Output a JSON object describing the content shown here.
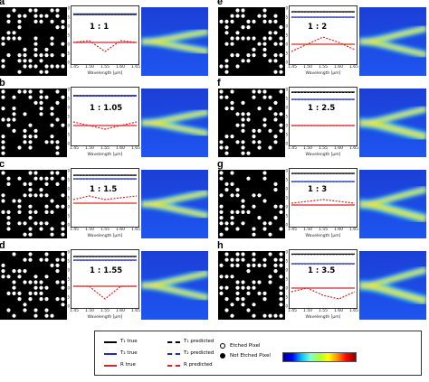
{
  "panels": [
    {
      "letter": "a",
      "ratio": "1 : 1",
      "ylabel": "Transmission [dB]"
    },
    {
      "letter": "b",
      "ratio": "1 : 1.05",
      "ylabel": "Transmission [dB]"
    },
    {
      "letter": "c",
      "ratio": "1 : 1.5",
      "ylabel": "Transmission [dB]"
    },
    {
      "letter": "d",
      "ratio": "1 : 1.55",
      "ylabel": "Transmission [dB]"
    },
    {
      "letter": "e",
      "ratio": "1 : 2",
      "ylabel": "Transmission [dB]"
    },
    {
      "letter": "f",
      "ratio": "1 : 2.5",
      "ylabel": "Transmission [dB]"
    },
    {
      "letter": "g",
      "ratio": "1 : 3",
      "ylabel": "Transmission [dB]"
    },
    {
      "letter": "h",
      "ratio": "1 : 3.5",
      "ylabel": "Transmission [dB]"
    }
  ],
  "axes": {
    "xticks": [
      "1.45",
      "1.50",
      "1.55",
      "1.60",
      "1.65"
    ],
    "yticks": [
      "0",
      "-5",
      "-10",
      "-15",
      "-20",
      "-25",
      "-30"
    ],
    "xlabel": "Wavelength [μm]"
  },
  "legend": {
    "t1_true": "T₁ true",
    "t1_pred": "T₁ predicted",
    "t2_true": "T₂ true",
    "t2_pred": "T₂ predicted",
    "r_true": "R true",
    "r_pred": "R predicted",
    "etched": "Etched Pixel",
    "not_etched": "Not Etched Pixel"
  },
  "colors": {
    "t1": "#000000",
    "t2": "#1f2db8",
    "r": "#d62728"
  },
  "chart_data": {
    "type": "line",
    "xlabel": "Wavelength [μm]",
    "ylabel": "Transmission [dB]",
    "xlim": [
      1.45,
      1.65
    ],
    "ylim": [
      -30,
      0
    ],
    "x": [
      1.45,
      1.5,
      1.55,
      1.6,
      1.65
    ],
    "panels": [
      {
        "letter": "a",
        "series": [
          {
            "name": "T₁ true",
            "values": [
              -3.5,
              -3.5,
              -3.5,
              -3.5,
              -3.5
            ]
          },
          {
            "name": "T₁ predicted",
            "values": [
              -3.6,
              -3.6,
              -3.6,
              -3.6,
              -3.6
            ]
          },
          {
            "name": "T₂ true",
            "values": [
              -3.2,
              -3.2,
              -3.2,
              -3.2,
              -3.2
            ]
          },
          {
            "name": "T₂ predicted",
            "values": [
              -3.3,
              -3.3,
              -3.3,
              -3.3,
              -3.3
            ]
          },
          {
            "name": "R true",
            "values": [
              -19,
              -19,
              -19,
              -19,
              -19
            ]
          },
          {
            "name": "R predicted",
            "values": [
              -19,
              -18,
              -24,
              -18,
              -19
            ]
          }
        ]
      },
      {
        "letter": "b",
        "series": [
          {
            "name": "T₁ true",
            "values": [
              -3.4,
              -3.4,
              -3.4,
              -3.4,
              -3.4
            ]
          },
          {
            "name": "T₁ predicted",
            "values": [
              -3.5,
              -3.5,
              -3.5,
              -3.5,
              -3.5
            ]
          },
          {
            "name": "T₂ true",
            "values": [
              -3.6,
              -3.6,
              -3.6,
              -3.6,
              -3.6
            ]
          },
          {
            "name": "T₂ predicted",
            "values": [
              -3.7,
              -3.7,
              -3.7,
              -3.7,
              -3.7
            ]
          },
          {
            "name": "R true",
            "values": [
              -20,
              -20,
              -20,
              -20,
              -20
            ]
          },
          {
            "name": "R predicted",
            "values": [
              -18,
              -20,
              -22,
              -20,
              -18
            ]
          }
        ]
      },
      {
        "letter": "c",
        "series": [
          {
            "name": "T₁ true",
            "values": [
              -2.5,
              -2.5,
              -2.5,
              -2.5,
              -2.5
            ]
          },
          {
            "name": "T₁ predicted",
            "values": [
              -2.6,
              -2.6,
              -2.6,
              -2.6,
              -2.6
            ]
          },
          {
            "name": "T₂ true",
            "values": [
              -4.5,
              -4.5,
              -4.5,
              -4.5,
              -4.5
            ]
          },
          {
            "name": "T₂ predicted",
            "values": [
              -4.6,
              -4.6,
              -4.6,
              -4.6,
              -4.6
            ]
          },
          {
            "name": "R true",
            "values": [
              -18,
              -18,
              -18,
              -18,
              -18
            ]
          },
          {
            "name": "R predicted",
            "values": [
              -16,
              -14,
              -16,
              -15,
              -14
            ]
          }
        ]
      },
      {
        "letter": "d",
        "series": [
          {
            "name": "T₁ true",
            "values": [
              -2.5,
              -2.5,
              -2.5,
              -2.5,
              -2.5
            ]
          },
          {
            "name": "T₁ predicted",
            "values": [
              -2.6,
              -2.6,
              -2.6,
              -2.6,
              -2.6
            ]
          },
          {
            "name": "T₂ true",
            "values": [
              -4.5,
              -4.5,
              -4.5,
              -4.5,
              -4.5
            ]
          },
          {
            "name": "T₂ predicted",
            "values": [
              -4.6,
              -4.6,
              -4.6,
              -4.6,
              -4.6
            ]
          },
          {
            "name": "R true",
            "values": [
              -19,
              -19,
              -19,
              -19,
              -19
            ]
          },
          {
            "name": "R predicted",
            "values": [
              -19,
              -19,
              -26,
              -19,
              -19
            ]
          }
        ]
      },
      {
        "letter": "e",
        "series": [
          {
            "name": "T₁ true",
            "values": [
              -2,
              -2,
              -2,
              -2,
              -2
            ]
          },
          {
            "name": "T₁ predicted",
            "values": [
              -2.1,
              -2.1,
              -2.1,
              -2.1,
              -2.1
            ]
          },
          {
            "name": "T₂ true",
            "values": [
              -5,
              -5,
              -5,
              -5,
              -5
            ]
          },
          {
            "name": "T₂ predicted",
            "values": [
              -5.1,
              -5.1,
              -5.1,
              -5.1,
              -5.1
            ]
          },
          {
            "name": "R true",
            "values": [
              -20,
              -20,
              -20,
              -20,
              -20
            ]
          },
          {
            "name": "R predicted",
            "values": [
              -24,
              -20,
              -16,
              -19,
              -23
            ]
          }
        ]
      },
      {
        "letter": "f",
        "series": [
          {
            "name": "T₁ true",
            "values": [
              -1.5,
              -1.5,
              -1.5,
              -1.5,
              -1.5
            ]
          },
          {
            "name": "T₁ predicted",
            "values": [
              -1.7,
              -1.7,
              -1.7,
              -1.7,
              -1.7
            ]
          },
          {
            "name": "T₂ true",
            "values": [
              -5.5,
              -5.5,
              -5.5,
              -5.5,
              -5.5
            ]
          },
          {
            "name": "T₂ predicted",
            "values": [
              -5.6,
              -5.6,
              -5.6,
              -5.6,
              -5.6
            ]
          },
          {
            "name": "R true",
            "values": [
              -20,
              -20,
              -20,
              -20,
              -20
            ]
          },
          {
            "name": "R predicted",
            "values": [
              -20,
              -20,
              -20,
              -20,
              -20
            ]
          }
        ]
      },
      {
        "letter": "g",
        "series": [
          {
            "name": "T₁ true",
            "values": [
              -1.5,
              -1.5,
              -1.5,
              -1.5,
              -1.5
            ]
          },
          {
            "name": "T₁ predicted",
            "values": [
              -1.6,
              -1.6,
              -1.6,
              -1.6,
              -1.6
            ]
          },
          {
            "name": "T₂ true",
            "values": [
              -6,
              -6,
              -6,
              -6,
              -6
            ]
          },
          {
            "name": "T₂ predicted",
            "values": [
              -6.1,
              -6.1,
              -6.1,
              -6.1,
              -6.1
            ]
          },
          {
            "name": "R true",
            "values": [
              -19,
              -19,
              -19,
              -19,
              -19
            ]
          },
          {
            "name": "R predicted",
            "values": [
              -18,
              -17,
              -16,
              -17,
              -18
            ]
          }
        ]
      },
      {
        "letter": "h",
        "series": [
          {
            "name": "T₁ true",
            "values": [
              -1.2,
              -1.2,
              -1.2,
              -1.2,
              -1.2
            ]
          },
          {
            "name": "T₁ predicted",
            "values": [
              -1.3,
              -1.3,
              -1.3,
              -1.3,
              -1.3
            ]
          },
          {
            "name": "T₂ true",
            "values": [
              -6.5,
              -6.5,
              -6.5,
              -6.5,
              -6.5
            ]
          },
          {
            "name": "T₂ predicted",
            "values": [
              -6.6,
              -6.6,
              -6.6,
              -6.6,
              -6.6
            ]
          },
          {
            "name": "R true",
            "values": [
              -20,
              -20,
              -20,
              -20,
              -20
            ]
          },
          {
            "name": "R predicted",
            "values": [
              -22,
              -20,
              -24,
              -26,
              -22
            ]
          }
        ]
      }
    ]
  }
}
